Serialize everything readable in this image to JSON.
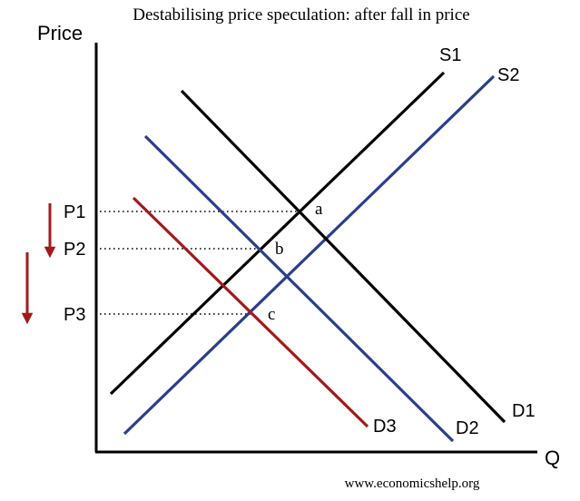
{
  "title": "Destabilising price speculation: after fall in price",
  "axes": {
    "y_label": "Price",
    "x_label": "Q"
  },
  "curves": {
    "s1": {
      "label": "S1",
      "color": "#000000"
    },
    "s2": {
      "label": "S2",
      "color": "#2b3e8c"
    },
    "d1": {
      "label": "D1",
      "color": "#000000"
    },
    "d2": {
      "label": "D2",
      "color": "#2b3e8c"
    },
    "d3": {
      "label": "D3",
      "color": "#a31a1a"
    }
  },
  "price_levels": {
    "p1": "P1",
    "p2": "P2",
    "p3": "P3"
  },
  "equilibria": {
    "a": "a",
    "b": "b",
    "c": "c"
  },
  "arrows": {
    "color": "#a31a1a",
    "icon": "down-arrow-icon"
  },
  "credit": "www.economicshelp.org"
}
